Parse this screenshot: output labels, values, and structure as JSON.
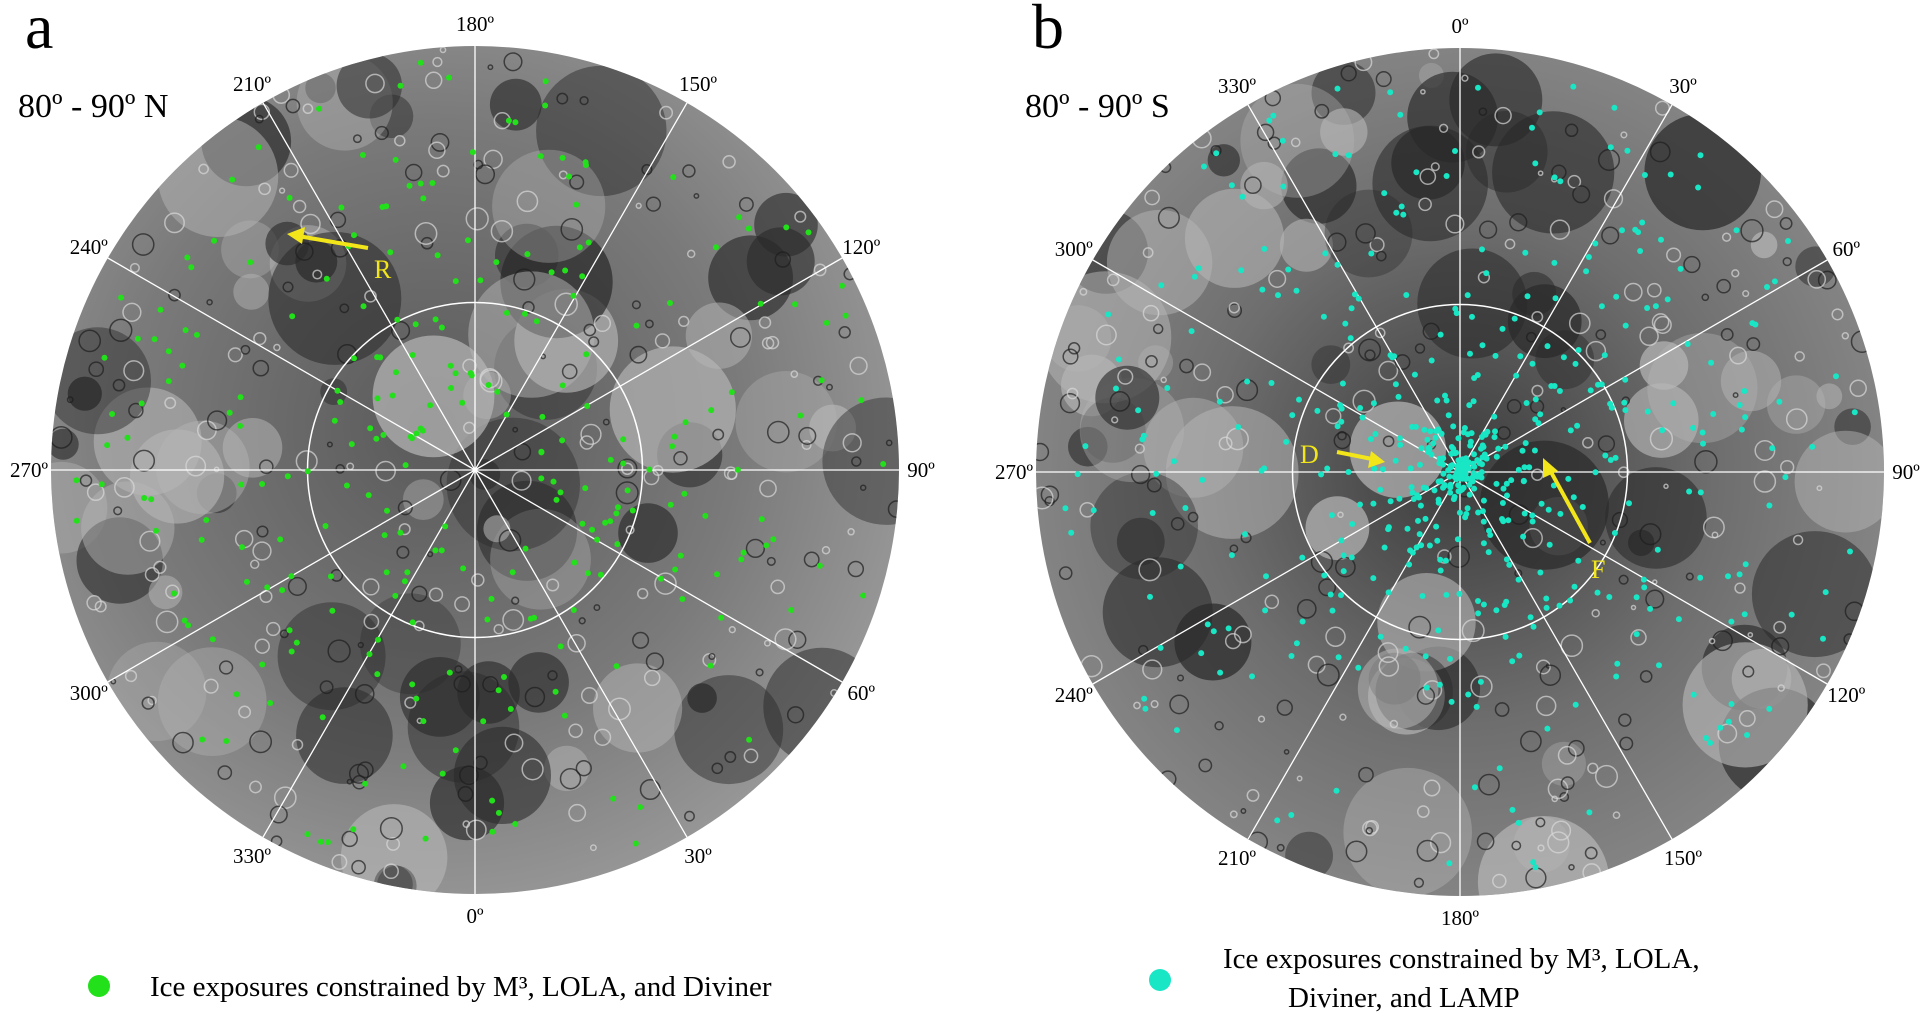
{
  "colors": {
    "ice_north": "#22e01a",
    "ice_south": "#18e6c4",
    "arrow": "#f2e61a",
    "grid": "#ffffff",
    "surface_light": "#8d8d8d",
    "surface_dark": "#2b2b2b"
  },
  "panels": [
    {
      "letter": "a",
      "region": "80º - 90º N",
      "degree_unit": "º",
      "longitudes": [
        {
          "label": "0",
          "deg": 0
        },
        {
          "label": "30",
          "deg": 30
        },
        {
          "label": "60",
          "deg": 60
        },
        {
          "label": "90",
          "deg": 90
        },
        {
          "label": "120",
          "deg": 120
        },
        {
          "label": "150",
          "deg": 150
        },
        {
          "label": "180",
          "deg": 180
        },
        {
          "label": "210",
          "deg": 210
        },
        {
          "label": "240",
          "deg": 240
        },
        {
          "label": "270",
          "deg": 270
        },
        {
          "label": "300",
          "deg": 300
        },
        {
          "label": "330",
          "deg": 330
        }
      ],
      "callouts": [
        {
          "label": "R"
        }
      ],
      "legend": "Ice exposures constrained by M³, LOLA, and Diviner"
    },
    {
      "letter": "b",
      "region": "80º - 90º S",
      "degree_unit": "º",
      "longitudes": [
        {
          "label": "0",
          "deg": 0
        },
        {
          "label": "30",
          "deg": 30
        },
        {
          "label": "60",
          "deg": 60
        },
        {
          "label": "90",
          "deg": 90
        },
        {
          "label": "120",
          "deg": 120
        },
        {
          "label": "150",
          "deg": 150
        },
        {
          "label": "180",
          "deg": 180
        },
        {
          "label": "210",
          "deg": 210
        },
        {
          "label": "240",
          "deg": 240
        },
        {
          "label": "270",
          "deg": 270
        },
        {
          "label": "300",
          "deg": 300
        },
        {
          "label": "330",
          "deg": 330
        }
      ],
      "callouts": [
        {
          "label": "D"
        },
        {
          "label": "F"
        }
      ],
      "legend_line1": "Ice exposures constrained by M³, LOLA,",
      "legend_line2": "Diviner, and LAMP"
    }
  ]
}
